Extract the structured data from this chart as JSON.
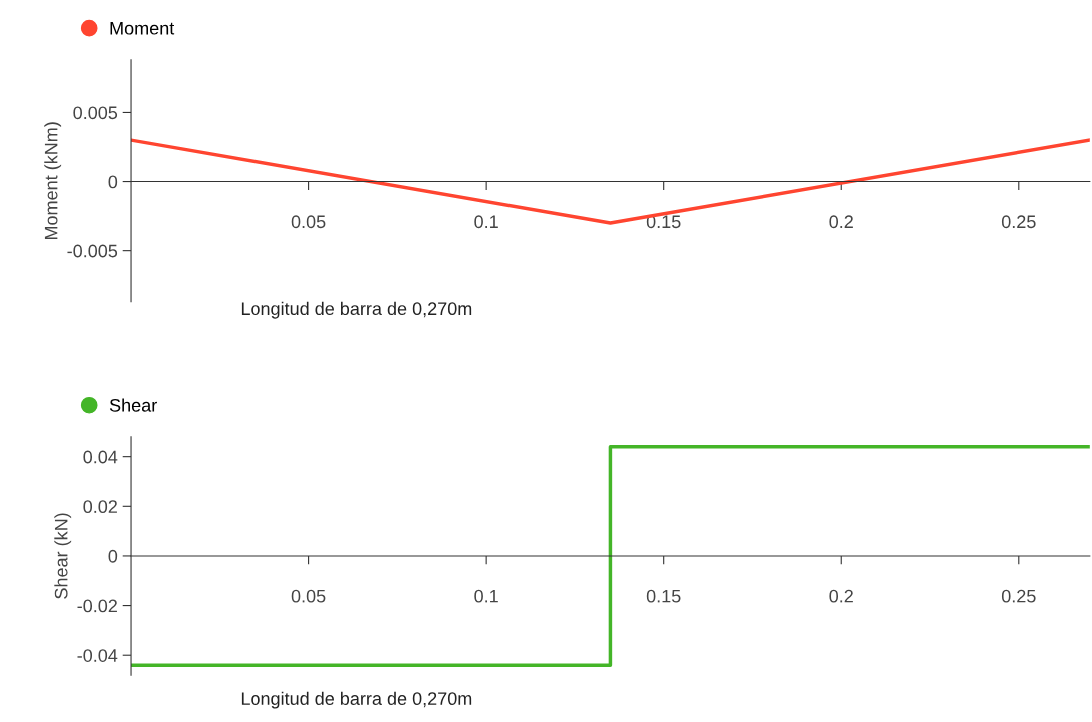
{
  "chart_data": [
    {
      "type": "line",
      "ylabel": "Moment (kNm)",
      "xlabel": "Longitud de barra de 0,270m",
      "x": [
        0,
        0.135,
        0.27
      ],
      "series": [
        {
          "name": "Moment",
          "color": "#ff4530",
          "values": [
            0.003,
            -0.003,
            0.003
          ]
        }
      ],
      "xlim": [
        0,
        0.27
      ],
      "xticks": [
        0.05,
        0.1,
        0.15,
        0.2,
        0.25
      ],
      "ylim": [
        -0.0087,
        0.0088
      ],
      "yticks": [
        -0.005,
        0,
        0.005
      ],
      "grid": false,
      "legend": "top left"
    },
    {
      "type": "step",
      "ylabel": "Shear (kN)",
      "xlabel": "Longitud de barra de 0,270m",
      "x": [
        0,
        0.135,
        0.27
      ],
      "series": [
        {
          "name": "Shear",
          "color": "#44b528",
          "values": [
            -0.044,
            0.044,
            0.044
          ]
        }
      ],
      "xlim": [
        0,
        0.27
      ],
      "xticks": [
        0.05,
        0.1,
        0.15,
        0.2,
        0.25
      ],
      "ylim": [
        -0.048,
        0.048
      ],
      "yticks": [
        -0.04,
        -0.02,
        0,
        0.02,
        0.04
      ],
      "grid": false,
      "legend": "top left"
    }
  ]
}
